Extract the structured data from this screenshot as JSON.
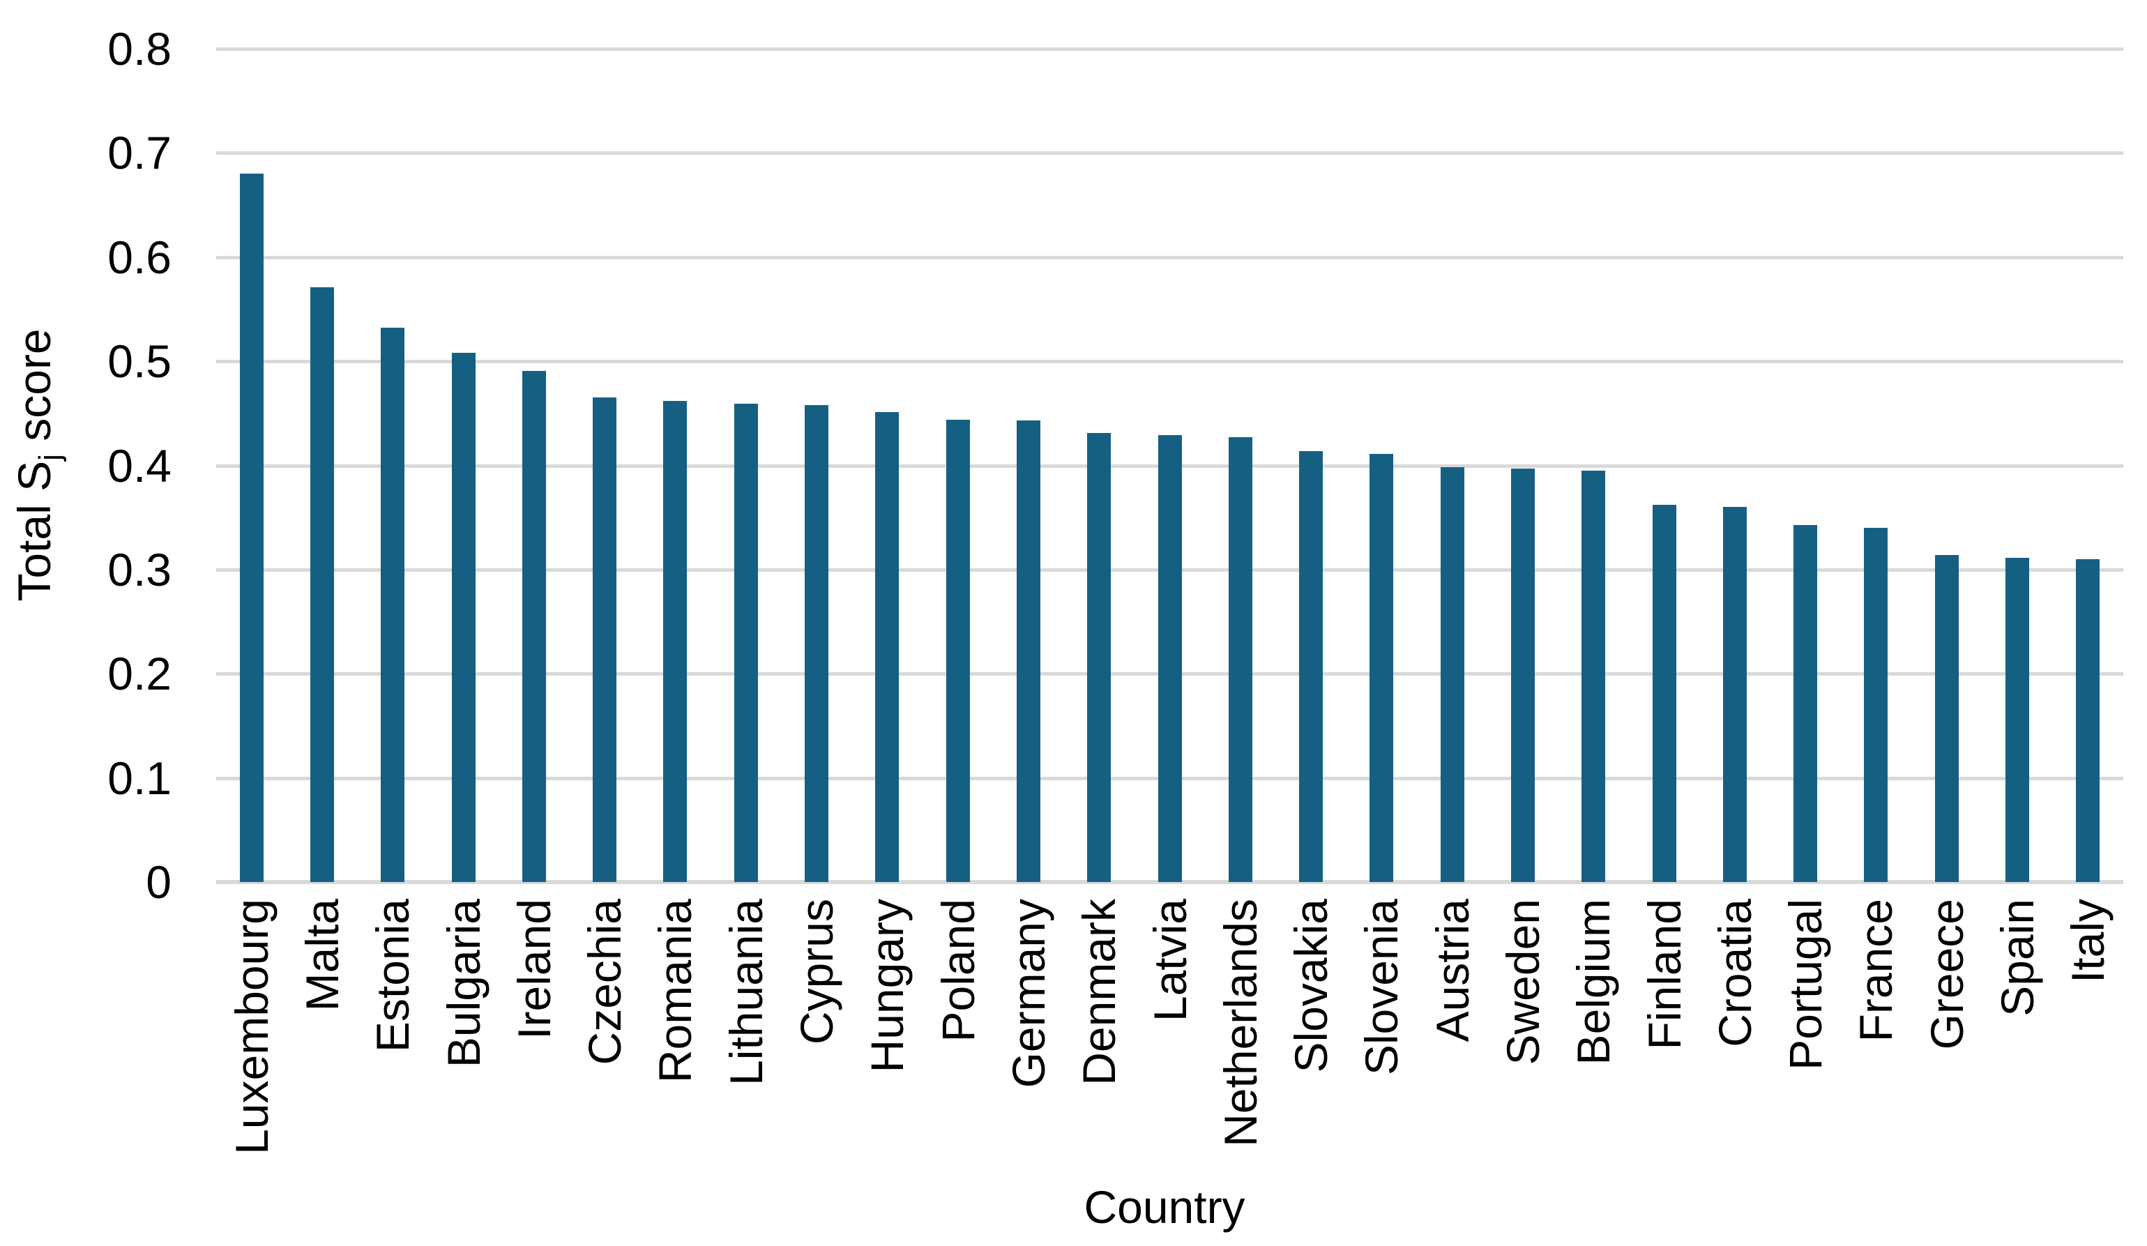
{
  "figure": {
    "background_color": "#ffffff",
    "text_color": "#000000"
  },
  "chart_data": {
    "type": "bar",
    "title": "",
    "xlabel": "Country",
    "ylabel": "Total Sj score",
    "ylabel_parts": {
      "prefix": "Total S",
      "subscript": "j",
      "suffix": " score"
    },
    "categories": [
      "Luxembourg",
      "Malta",
      "Estonia",
      "Bulgaria",
      "Ireland",
      "Czechia",
      "Romania",
      "Lithuania",
      "Cyprus",
      "Hungary",
      "Poland",
      "Germany",
      "Denmark",
      "Latvia",
      "Netherlands",
      "Slovakia",
      "Slovenia",
      "Austria",
      "Sweden",
      "Belgium",
      "Finland",
      "Croatia",
      "Portugal",
      "France",
      "Greece",
      "Spain",
      "Italy"
    ],
    "values": [
      0.68,
      0.571,
      0.532,
      0.508,
      0.491,
      0.465,
      0.462,
      0.459,
      0.458,
      0.451,
      0.444,
      0.443,
      0.431,
      0.429,
      0.427,
      0.414,
      0.411,
      0.398,
      0.397,
      0.395,
      0.362,
      0.36,
      0.343,
      0.34,
      0.314,
      0.311,
      0.31
    ],
    "ylim": [
      0,
      0.8
    ],
    "yticks": {
      "values": [
        0,
        0.1,
        0.2,
        0.3,
        0.4,
        0.5,
        0.6,
        0.7,
        0.8
      ],
      "labels": [
        "0",
        "0.1",
        "0.2",
        "0.3",
        "0.4",
        "0.5",
        "0.6",
        "0.7",
        "0.8"
      ]
    },
    "grid": "horizontal",
    "legend_position": "none",
    "bar_color": "#156082",
    "gridline_color": "#d9d9d9",
    "axis_line_color": "#d9d9d9"
  }
}
